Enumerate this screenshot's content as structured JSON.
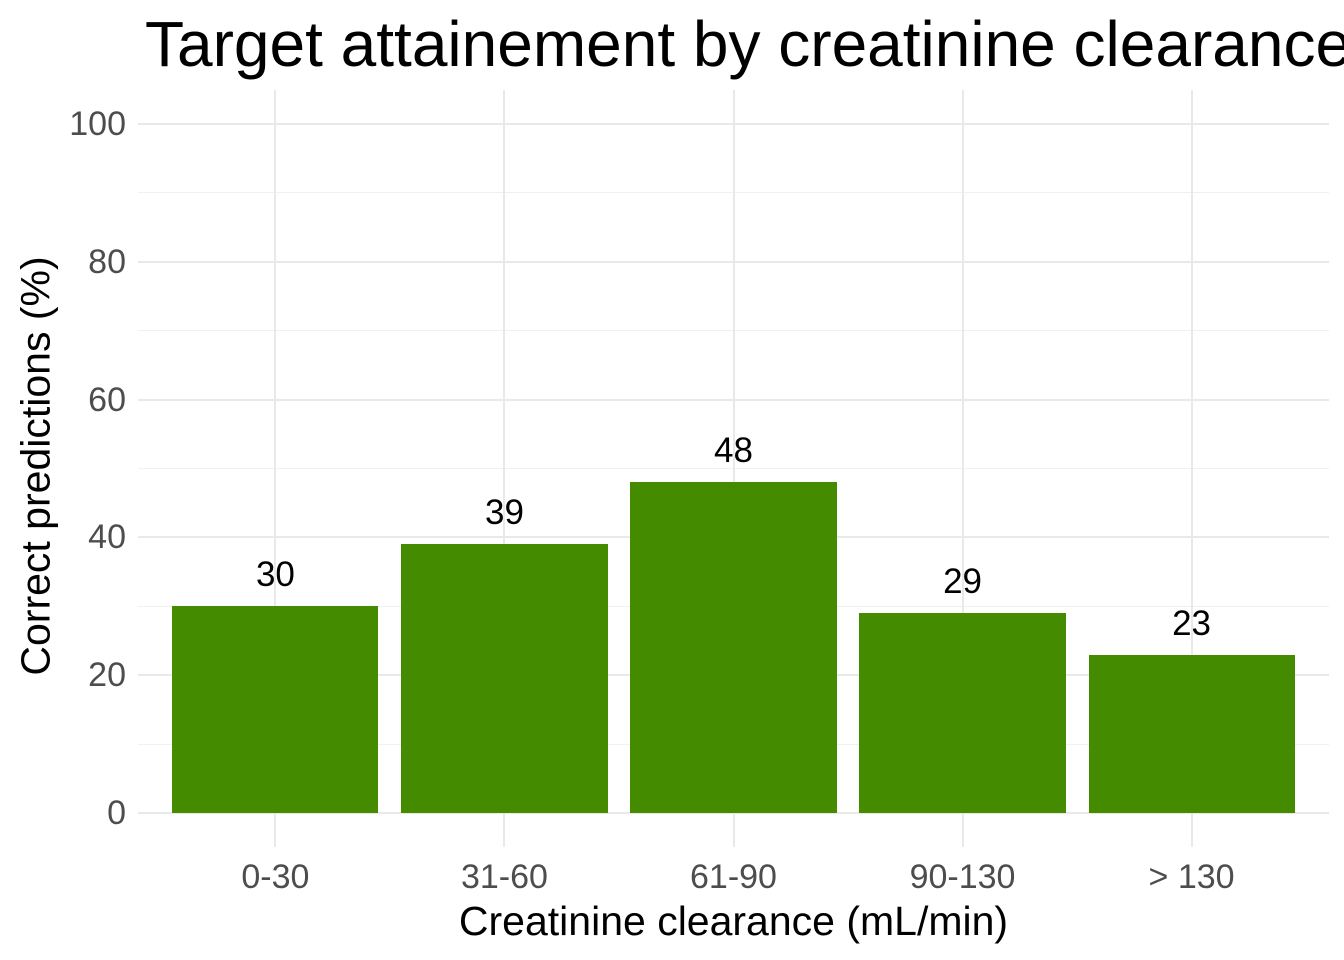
{
  "chart_data": {
    "type": "bar",
    "title": "Target attainement by creatinine clearance",
    "xlabel": "Creatinine clearance (mL/min)",
    "ylabel": "Correct predictions (%)",
    "categories": [
      "0-30",
      "31-60",
      "61-90",
      "90-130",
      "> 130"
    ],
    "values": [
      30,
      39,
      48,
      29,
      23
    ],
    "bar_value_labels": [
      "30",
      "39",
      "48",
      "29",
      "23"
    ],
    "ylim": [
      0,
      100
    ],
    "yticks": [
      0,
      20,
      40,
      60,
      80,
      100
    ],
    "yticks_minor": [
      10,
      30,
      50,
      70,
      90
    ],
    "grid": "horizontal major+minor lines, vertical line at each category center",
    "legend": "none",
    "colors": {
      "bar_fill": "#458B00",
      "grid_major": "#E9E9E9",
      "grid_minor": "#F0F0F0",
      "tick_label": "#4D4D4D",
      "text": "#000000",
      "background": "#FFFFFF"
    }
  }
}
